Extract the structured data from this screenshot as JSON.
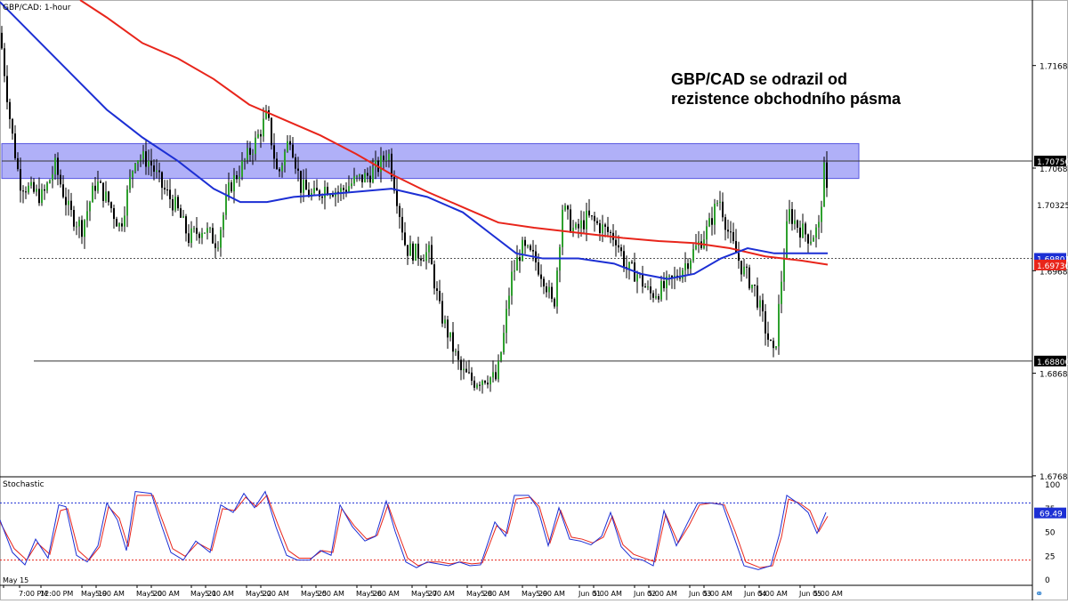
{
  "chart_data": [
    {
      "type": "candlestick",
      "title": "GBP/CAD: 1-hour",
      "annotation": [
        "GBP/CAD se odrazil od",
        "rezistence obchodního pásma"
      ],
      "yticks": [
        "1.71681",
        "1.70681",
        "1.69681",
        "1.68681",
        "1.67681"
      ],
      "ylim": [
        1.6768,
        1.7232
      ],
      "price_labels": [
        {
          "value": "1.70750",
          "style": "dark"
        },
        {
          "value": "1.70325",
          "style": "plain"
        },
        {
          "value": "1.69801",
          "style": "blue"
        },
        {
          "value": "1.69736",
          "style": "red"
        },
        {
          "value": "1.68800",
          "style": "dark"
        }
      ],
      "lines": {
        "resistance": 1.7075,
        "support": 1.688,
        "dotted": 1.698
      },
      "resistance_zone": [
        1.7058,
        1.7092
      ],
      "xticks": [
        "May 15",
        "7:00 PM",
        "12:00 PM",
        "May 19",
        "5:00 AM",
        "May 20",
        "5:00 AM",
        "May 21",
        "5:00 AM",
        "May 22",
        "5:00 AM",
        "May 25",
        "5:00 AM",
        "May 26",
        "5:00 AM",
        "May 27",
        "5:00 AM",
        "May 28",
        "5:00 AM",
        "May 29",
        "5:00 AM",
        "Jun 01",
        "5:00 AM",
        "Jun 02",
        "5:00 AM",
        "Jun 03",
        "5:00 AM",
        "Jun 04",
        "5:00 AM",
        "Jun 05",
        "5:00 AM"
      ],
      "path_points": [
        [
          0,
          1.72
        ],
        [
          12,
          1.711
        ],
        [
          22,
          1.7055
        ],
        [
          36,
          1.7045
        ],
        [
          48,
          1.704
        ],
        [
          62,
          1.707
        ],
        [
          78,
          1.7025
        ],
        [
          92,
          1.701
        ],
        [
          108,
          1.7055
        ],
        [
          122,
          1.7035
        ],
        [
          135,
          1.701
        ],
        [
          152,
          1.708
        ],
        [
          168,
          1.7075
        ],
        [
          182,
          1.705
        ],
        [
          198,
          1.703
        ],
        [
          212,
          1.7
        ],
        [
          228,
          1.701
        ],
        [
          244,
          1.6995
        ],
        [
          258,
          1.705
        ],
        [
          272,
          1.707
        ],
        [
          288,
          1.7095
        ],
        [
          300,
          1.712
        ],
        [
          312,
          1.706
        ],
        [
          326,
          1.71
        ],
        [
          338,
          1.705
        ],
        [
          352,
          1.704
        ],
        [
          366,
          1.705
        ],
        [
          382,
          1.7045
        ],
        [
          398,
          1.7055
        ],
        [
          412,
          1.706
        ],
        [
          426,
          1.707
        ],
        [
          436,
          1.7085
        ],
        [
          446,
          1.704
        ],
        [
          456,
          1.699
        ],
        [
          468,
          1.6985
        ],
        [
          482,
          1.6985
        ],
        [
          494,
          1.693
        ],
        [
          506,
          1.69
        ],
        [
          518,
          1.687
        ],
        [
          532,
          1.686
        ],
        [
          546,
          1.6865
        ],
        [
          558,
          1.6862
        ],
        [
          566,
          1.6905
        ],
        [
          574,
          1.696
        ],
        [
          586,
          1.699
        ],
        [
          600,
          1.698
        ],
        [
          612,
          1.696
        ],
        [
          622,
          1.693
        ],
        [
          632,
          1.703
        ],
        [
          646,
          1.7005
        ],
        [
          660,
          1.702
        ],
        [
          676,
          1.701
        ],
        [
          692,
          1.7
        ],
        [
          704,
          1.697
        ],
        [
          716,
          1.6965
        ],
        [
          730,
          1.6945
        ],
        [
          744,
          1.695
        ],
        [
          758,
          1.696
        ],
        [
          770,
          1.6975
        ],
        [
          782,
          1.699
        ],
        [
          796,
          1.701
        ],
        [
          808,
          1.704
        ],
        [
          820,
          1.7
        ],
        [
          834,
          1.697
        ],
        [
          848,
          1.695
        ],
        [
          862,
          1.6905
        ],
        [
          870,
          1.6882
        ],
        [
          878,
          1.696
        ],
        [
          886,
          1.7025
        ],
        [
          898,
          1.701
        ],
        [
          910,
          1.7
        ],
        [
          920,
          1.701
        ],
        [
          926,
          1.7065
        ],
        [
          930,
          1.7035
        ]
      ],
      "ma_blue": [
        [
          0,
          1.723
        ],
        [
          40,
          1.7195
        ],
        [
          80,
          1.716
        ],
        [
          120,
          1.7125
        ],
        [
          160,
          1.7098
        ],
        [
          200,
          1.7075
        ],
        [
          240,
          1.7048
        ],
        [
          270,
          1.7035
        ],
        [
          300,
          1.7035
        ],
        [
          330,
          1.704
        ],
        [
          360,
          1.7042
        ],
        [
          400,
          1.7045
        ],
        [
          440,
          1.7048
        ],
        [
          480,
          1.704
        ],
        [
          520,
          1.7025
        ],
        [
          550,
          1.7005
        ],
        [
          580,
          1.6985
        ],
        [
          610,
          1.698
        ],
        [
          650,
          1.698
        ],
        [
          690,
          1.6975
        ],
        [
          720,
          1.6965
        ],
        [
          750,
          1.696
        ],
        [
          780,
          1.6965
        ],
        [
          810,
          1.698
        ],
        [
          840,
          1.699
        ],
        [
          870,
          1.6985
        ],
        [
          900,
          1.6985
        ],
        [
          930,
          1.6985
        ]
      ],
      "ma_red": [
        [
          90,
          1.7232
        ],
        [
          120,
          1.7215
        ],
        [
          160,
          1.719
        ],
        [
          200,
          1.7175
        ],
        [
          240,
          1.7155
        ],
        [
          280,
          1.713
        ],
        [
          320,
          1.7115
        ],
        [
          360,
          1.71
        ],
        [
          400,
          1.7082
        ],
        [
          440,
          1.7062
        ],
        [
          480,
          1.7045
        ],
        [
          520,
          1.703
        ],
        [
          560,
          1.7015
        ],
        [
          600,
          1.701
        ],
        [
          650,
          1.7005
        ],
        [
          700,
          1.7
        ],
        [
          740,
          1.6997
        ],
        [
          780,
          1.6995
        ],
        [
          820,
          1.699
        ],
        [
          860,
          1.6982
        ],
        [
          900,
          1.6978
        ],
        [
          930,
          1.6974
        ]
      ],
      "stochastic": {
        "label": "Stochastic",
        "yticks": [
          "100",
          "75",
          "50",
          "25",
          "0"
        ],
        "current": "69.49",
        "levels": [
          80,
          20
        ],
        "k": [
          [
            0,
            62
          ],
          [
            14,
            28
          ],
          [
            28,
            15
          ],
          [
            40,
            42
          ],
          [
            54,
            22
          ],
          [
            66,
            78
          ],
          [
            74,
            76
          ],
          [
            86,
            25
          ],
          [
            98,
            18
          ],
          [
            110,
            35
          ],
          [
            120,
            80
          ],
          [
            132,
            62
          ],
          [
            142,
            30
          ],
          [
            152,
            92
          ],
          [
            170,
            90
          ],
          [
            182,
            55
          ],
          [
            192,
            28
          ],
          [
            206,
            20
          ],
          [
            220,
            40
          ],
          [
            236,
            28
          ],
          [
            248,
            78
          ],
          [
            262,
            70
          ],
          [
            274,
            90
          ],
          [
            286,
            75
          ],
          [
            298,
            92
          ],
          [
            310,
            55
          ],
          [
            322,
            25
          ],
          [
            334,
            20
          ],
          [
            348,
            20
          ],
          [
            360,
            30
          ],
          [
            372,
            25
          ],
          [
            382,
            78
          ],
          [
            396,
            55
          ],
          [
            410,
            40
          ],
          [
            422,
            45
          ],
          [
            434,
            82
          ],
          [
            444,
            50
          ],
          [
            456,
            18
          ],
          [
            468,
            12
          ],
          [
            480,
            18
          ],
          [
            492,
            16
          ],
          [
            504,
            14
          ],
          [
            516,
            18
          ],
          [
            528,
            14
          ],
          [
            540,
            15
          ],
          [
            556,
            60
          ],
          [
            568,
            45
          ],
          [
            578,
            88
          ],
          [
            594,
            88
          ],
          [
            604,
            75
          ],
          [
            616,
            35
          ],
          [
            628,
            75
          ],
          [
            640,
            42
          ],
          [
            652,
            40
          ],
          [
            664,
            36
          ],
          [
            676,
            45
          ],
          [
            686,
            70
          ],
          [
            698,
            34
          ],
          [
            710,
            22
          ],
          [
            722,
            20
          ],
          [
            734,
            14
          ],
          [
            746,
            72
          ],
          [
            760,
            35
          ],
          [
            772,
            58
          ],
          [
            784,
            80
          ],
          [
            798,
            80
          ],
          [
            812,
            78
          ],
          [
            824,
            46
          ],
          [
            836,
            14
          ],
          [
            852,
            10
          ],
          [
            866,
            14
          ],
          [
            876,
            48
          ],
          [
            884,
            88
          ],
          [
            896,
            80
          ],
          [
            908,
            70
          ],
          [
            918,
            48
          ],
          [
            928,
            70
          ]
        ],
        "d": [
          [
            0,
            60
          ],
          [
            16,
            32
          ],
          [
            30,
            20
          ],
          [
            42,
            38
          ],
          [
            56,
            26
          ],
          [
            68,
            72
          ],
          [
            76,
            74
          ],
          [
            88,
            30
          ],
          [
            100,
            20
          ],
          [
            112,
            34
          ],
          [
            122,
            76
          ],
          [
            134,
            64
          ],
          [
            144,
            34
          ],
          [
            154,
            88
          ],
          [
            172,
            88
          ],
          [
            184,
            58
          ],
          [
            194,
            32
          ],
          [
            208,
            24
          ],
          [
            222,
            38
          ],
          [
            238,
            30
          ],
          [
            250,
            74
          ],
          [
            264,
            72
          ],
          [
            276,
            86
          ],
          [
            288,
            76
          ],
          [
            300,
            88
          ],
          [
            312,
            58
          ],
          [
            324,
            30
          ],
          [
            336,
            22
          ],
          [
            350,
            22
          ],
          [
            362,
            30
          ],
          [
            374,
            28
          ],
          [
            384,
            74
          ],
          [
            398,
            56
          ],
          [
            412,
            42
          ],
          [
            424,
            46
          ],
          [
            436,
            78
          ],
          [
            446,
            52
          ],
          [
            458,
            22
          ],
          [
            470,
            14
          ],
          [
            482,
            18
          ],
          [
            494,
            18
          ],
          [
            506,
            16
          ],
          [
            518,
            18
          ],
          [
            530,
            16
          ],
          [
            542,
            17
          ],
          [
            558,
            56
          ],
          [
            570,
            48
          ],
          [
            580,
            84
          ],
          [
            596,
            86
          ],
          [
            606,
            76
          ],
          [
            618,
            38
          ],
          [
            630,
            72
          ],
          [
            642,
            44
          ],
          [
            654,
            42
          ],
          [
            666,
            38
          ],
          [
            678,
            44
          ],
          [
            688,
            66
          ],
          [
            700,
            36
          ],
          [
            712,
            26
          ],
          [
            724,
            22
          ],
          [
            736,
            18
          ],
          [
            748,
            68
          ],
          [
            762,
            38
          ],
          [
            774,
            56
          ],
          [
            786,
            78
          ],
          [
            800,
            80
          ],
          [
            814,
            78
          ],
          [
            826,
            50
          ],
          [
            838,
            18
          ],
          [
            854,
            12
          ],
          [
            868,
            14
          ],
          [
            878,
            44
          ],
          [
            886,
            84
          ],
          [
            898,
            80
          ],
          [
            910,
            72
          ],
          [
            920,
            50
          ],
          [
            930,
            66
          ]
        ]
      }
    }
  ]
}
